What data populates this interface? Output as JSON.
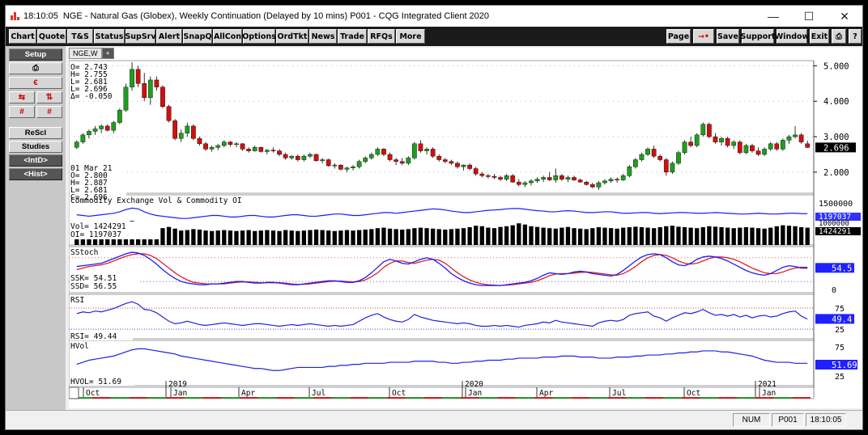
{
  "window": {
    "time": "18:10:05",
    "title": "NGE - Natural Gas (Globex), Weekly Continuation (Delayed by 10 mins)  P001 - CQG Integrated Client 2020",
    "minimize": "—",
    "maximize": "☐",
    "close": "✕"
  },
  "menubar": {
    "left": [
      "Chart",
      "Quote",
      "T&S",
      "Status",
      "SupSrv",
      "Alert",
      "SnapQ",
      "AllCon",
      "Options",
      "OrdTkt",
      "News",
      "Trade",
      "RFQs",
      "More"
    ],
    "right": [
      "Page",
      "→•",
      "Save",
      "Support",
      "Window",
      "Exit",
      "⎙",
      "?"
    ]
  },
  "leftpanel": {
    "setup": "Setup",
    "print_icon": "⎙",
    "cur_icon": "€",
    "arrows1": [
      "⇆",
      "⇅"
    ],
    "arrows2": [
      "#",
      "#"
    ],
    "rescl": "ReScl",
    "studies": "Studies",
    "intd": "<IntD>",
    "hist": "<Hist>"
  },
  "tabs": [
    "NGE,W",
    "+"
  ],
  "ohlc_top": {
    "O": "2.743",
    "H": "2.755",
    "L": "2.681",
    "L2": "2.696",
    "D": "-0.050"
  },
  "ohlc_bottom": {
    "date": "01 Mar 21",
    "O": "2.800",
    "H": "2.887",
    "L": "2.681",
    "C": "2.696"
  },
  "price_axis": [
    "5.000",
    "4.000",
    "3.000",
    "2.000"
  ],
  "last_price": "2.696",
  "volume_panel": {
    "title": "Commodity Exchange Vol & Commodity OI",
    "vol_label": "Vol=",
    "vol": "1424291",
    "oi_label": "OI=",
    "oi": "1197037",
    "axis_top": "1500000",
    "axis_mid": "1000000",
    "tag_oi": "1197037",
    "tag_vol": "1424291"
  },
  "stoch_panel": {
    "title": "SStoch",
    "ssk_label": "SSK=",
    "ssk": "54.51",
    "ssd_label": "SSD=",
    "ssd": "56.55",
    "axis_zero": "0",
    "tag": "54.5"
  },
  "rsi_panel": {
    "title": "RSI",
    "rsi_label": "RSI=",
    "rsi": "49.44",
    "axis": [
      "75",
      "25"
    ],
    "tag": "49.4"
  },
  "hvol_panel": {
    "title": "HVol",
    "label": "HVOL=",
    "value": "51.69",
    "axis": [
      "75",
      "25"
    ],
    "tag": "51.69"
  },
  "time_axis": [
    "Oct",
    "2019",
    "Jan",
    "Apr",
    "Jul",
    "Oct",
    "2020",
    "Jan",
    "Apr",
    "Jul",
    "Oct",
    "2021",
    "Jan"
  ],
  "statusbar": {
    "num": "NUM",
    "page": "P001",
    "time": "18:10:05"
  },
  "colors": {
    "up": "#1f9e1f",
    "down": "#d01010",
    "stoch_k": "#1a1aff",
    "stoch_d": "#e02020",
    "rsi": "#2020e0",
    "volume": "#000000"
  },
  "chart_data": {
    "type": "candlestick",
    "interval": "weekly",
    "price_range": [
      1.45,
      5.1
    ],
    "candles": [
      [
        2.7,
        2.9,
        2.65,
        2.85
      ],
      [
        2.85,
        3.1,
        2.8,
        3.05
      ],
      [
        3.05,
        3.2,
        2.95,
        3.15
      ],
      [
        3.15,
        3.3,
        3.05,
        3.22
      ],
      [
        3.22,
        3.35,
        3.1,
        3.3
      ],
      [
        3.3,
        3.35,
        3.15,
        3.18
      ],
      [
        3.18,
        3.45,
        3.1,
        3.4
      ],
      [
        3.4,
        3.8,
        3.35,
        3.75
      ],
      [
        3.75,
        4.5,
        3.7,
        4.4
      ],
      [
        4.4,
        5.1,
        4.3,
        4.9
      ],
      [
        4.9,
        5.0,
        4.4,
        4.5
      ],
      [
        4.5,
        4.8,
        4.0,
        4.1
      ],
      [
        4.1,
        4.7,
        3.9,
        4.6
      ],
      [
        4.6,
        4.7,
        4.3,
        4.4
      ],
      [
        4.4,
        4.45,
        3.8,
        3.85
      ],
      [
        3.85,
        3.9,
        3.4,
        3.45
      ],
      [
        3.45,
        3.5,
        2.9,
        2.95
      ],
      [
        2.95,
        3.2,
        2.85,
        3.1
      ],
      [
        3.1,
        3.4,
        3.0,
        3.3
      ],
      [
        3.3,
        3.35,
        2.9,
        2.95
      ],
      [
        2.95,
        3.0,
        2.75,
        2.8
      ],
      [
        2.8,
        2.85,
        2.6,
        2.65
      ],
      [
        2.65,
        2.75,
        2.58,
        2.7
      ],
      [
        2.7,
        2.8,
        2.62,
        2.75
      ],
      [
        2.75,
        2.9,
        2.7,
        2.85
      ],
      [
        2.85,
        2.88,
        2.72,
        2.78
      ],
      [
        2.78,
        2.85,
        2.7,
        2.8
      ],
      [
        2.8,
        2.82,
        2.6,
        2.65
      ],
      [
        2.65,
        2.7,
        2.55,
        2.6
      ],
      [
        2.6,
        2.75,
        2.58,
        2.7
      ],
      [
        2.7,
        2.72,
        2.55,
        2.58
      ],
      [
        2.58,
        2.65,
        2.5,
        2.62
      ],
      [
        2.62,
        2.7,
        2.55,
        2.6
      ],
      [
        2.6,
        2.65,
        2.45,
        2.5
      ],
      [
        2.5,
        2.55,
        2.35,
        2.4
      ],
      [
        2.4,
        2.48,
        2.35,
        2.45
      ],
      [
        2.45,
        2.5,
        2.3,
        2.35
      ],
      [
        2.35,
        2.5,
        2.3,
        2.45
      ],
      [
        2.45,
        2.55,
        2.4,
        2.5
      ],
      [
        2.5,
        2.52,
        2.3,
        2.32
      ],
      [
        2.32,
        2.4,
        2.25,
        2.35
      ],
      [
        2.35,
        2.38,
        2.15,
        2.18
      ],
      [
        2.18,
        2.25,
        2.1,
        2.2
      ],
      [
        2.2,
        2.22,
        2.05,
        2.08
      ],
      [
        2.08,
        2.15,
        2.0,
        2.12
      ],
      [
        2.12,
        2.2,
        2.05,
        2.15
      ],
      [
        2.15,
        2.35,
        2.1,
        2.3
      ],
      [
        2.3,
        2.45,
        2.25,
        2.4
      ],
      [
        2.4,
        2.55,
        2.35,
        2.5
      ],
      [
        2.5,
        2.7,
        2.45,
        2.65
      ],
      [
        2.65,
        2.68,
        2.45,
        2.5
      ],
      [
        2.5,
        2.55,
        2.3,
        2.35
      ],
      [
        2.35,
        2.4,
        2.2,
        2.3
      ],
      [
        2.3,
        2.4,
        2.2,
        2.25
      ],
      [
        2.25,
        2.45,
        2.2,
        2.4
      ],
      [
        2.4,
        2.85,
        2.35,
        2.8
      ],
      [
        2.8,
        2.9,
        2.55,
        2.6
      ],
      [
        2.6,
        2.7,
        2.5,
        2.65
      ],
      [
        2.65,
        2.7,
        2.4,
        2.45
      ],
      [
        2.45,
        2.5,
        2.3,
        2.35
      ],
      [
        2.35,
        2.4,
        2.25,
        2.3
      ],
      [
        2.3,
        2.35,
        2.2,
        2.25
      ],
      [
        2.25,
        2.3,
        2.1,
        2.15
      ],
      [
        2.15,
        2.22,
        2.05,
        2.2
      ],
      [
        2.2,
        2.25,
        2.05,
        2.1
      ],
      [
        2.1,
        2.15,
        1.9,
        1.95
      ],
      [
        1.95,
        2.0,
        1.85,
        1.9
      ],
      [
        1.9,
        1.95,
        1.82,
        1.88
      ],
      [
        1.88,
        1.95,
        1.8,
        1.85
      ],
      [
        1.85,
        1.9,
        1.75,
        1.8
      ],
      [
        1.8,
        1.95,
        1.75,
        1.9
      ],
      [
        1.9,
        1.95,
        1.7,
        1.72
      ],
      [
        1.72,
        1.8,
        1.6,
        1.65
      ],
      [
        1.65,
        1.75,
        1.58,
        1.7
      ],
      [
        1.7,
        1.8,
        1.62,
        1.75
      ],
      [
        1.75,
        1.85,
        1.7,
        1.8
      ],
      [
        1.8,
        1.9,
        1.72,
        1.85
      ],
      [
        1.85,
        2.0,
        1.75,
        1.78
      ],
      [
        1.78,
        2.1,
        1.7,
        1.9
      ],
      [
        1.9,
        1.95,
        1.75,
        1.8
      ],
      [
        1.8,
        1.9,
        1.72,
        1.85
      ],
      [
        1.85,
        1.9,
        1.75,
        1.78
      ],
      [
        1.78,
        1.82,
        1.7,
        1.72
      ],
      [
        1.72,
        1.75,
        1.62,
        1.65
      ],
      [
        1.65,
        1.7,
        1.55,
        1.58
      ],
      [
        1.58,
        1.75,
        1.5,
        1.7
      ],
      [
        1.7,
        1.8,
        1.65,
        1.75
      ],
      [
        1.75,
        1.85,
        1.7,
        1.8
      ],
      [
        1.8,
        1.85,
        1.7,
        1.78
      ],
      [
        1.78,
        1.95,
        1.75,
        1.9
      ],
      [
        1.9,
        2.2,
        1.85,
        2.15
      ],
      [
        2.15,
        2.4,
        2.1,
        2.35
      ],
      [
        2.35,
        2.55,
        2.3,
        2.5
      ],
      [
        2.5,
        2.7,
        2.45,
        2.65
      ],
      [
        2.65,
        2.75,
        2.4,
        2.45
      ],
      [
        2.45,
        2.5,
        2.3,
        2.35
      ],
      [
        2.35,
        2.4,
        1.9,
        2.0
      ],
      [
        2.0,
        2.3,
        1.95,
        2.25
      ],
      [
        2.25,
        2.6,
        2.2,
        2.55
      ],
      [
        2.55,
        2.9,
        2.5,
        2.85
      ],
      [
        2.85,
        3.0,
        2.7,
        2.75
      ],
      [
        2.75,
        3.1,
        2.7,
        3.05
      ],
      [
        3.05,
        3.4,
        3.0,
        3.35
      ],
      [
        3.35,
        3.4,
        2.95,
        3.0
      ],
      [
        3.0,
        3.1,
        2.8,
        2.85
      ],
      [
        2.85,
        3.0,
        2.75,
        2.95
      ],
      [
        2.95,
        3.0,
        2.7,
        2.75
      ],
      [
        2.75,
        2.9,
        2.65,
        2.85
      ],
      [
        2.85,
        2.9,
        2.5,
        2.55
      ],
      [
        2.55,
        2.8,
        2.5,
        2.75
      ],
      [
        2.75,
        2.8,
        2.55,
        2.6
      ],
      [
        2.6,
        2.7,
        2.45,
        2.5
      ],
      [
        2.5,
        2.7,
        2.45,
        2.65
      ],
      [
        2.65,
        2.85,
        2.6,
        2.8
      ],
      [
        2.8,
        2.85,
        2.6,
        2.65
      ],
      [
        2.65,
        2.95,
        2.6,
        2.9
      ],
      [
        2.9,
        3.05,
        2.8,
        3.0
      ],
      [
        3.0,
        3.3,
        2.95,
        3.05
      ],
      [
        3.05,
        3.1,
        2.8,
        2.85
      ],
      [
        2.8,
        2.887,
        2.681,
        2.696
      ]
    ],
    "volume": [
      0.45,
      0.5,
      0.55,
      0.5,
      0.6,
      0.55,
      0.62,
      0.7,
      0.95,
      1.0,
      0.85,
      0.72,
      0.65,
      0.6,
      0.7,
      0.75,
      0.68,
      0.6,
      0.62,
      0.66,
      0.64,
      0.6,
      0.58,
      0.6,
      0.62,
      0.6,
      0.58,
      0.6,
      0.62,
      0.58,
      0.6,
      0.62,
      0.6,
      0.58,
      0.62,
      0.6,
      0.58,
      0.6,
      0.62,
      0.64,
      0.62,
      0.6,
      0.58,
      0.6,
      0.62,
      0.6,
      0.62,
      0.64,
      0.66,
      0.7,
      0.72,
      0.68,
      0.66,
      0.64,
      0.66,
      0.7,
      0.72,
      0.7,
      0.68,
      0.66,
      0.64,
      0.66,
      0.68,
      0.7,
      0.74,
      0.8,
      0.78,
      0.72,
      0.7,
      0.75,
      0.78,
      0.82,
      0.9,
      0.85,
      0.78,
      0.75,
      0.72,
      0.7,
      0.68,
      0.72,
      0.75,
      0.7,
      0.68,
      0.66,
      0.7,
      0.74,
      0.72,
      0.7,
      0.68,
      0.72,
      0.74,
      0.76,
      0.74,
      0.72,
      0.7,
      0.74,
      0.78,
      0.8,
      0.76,
      0.74,
      0.72,
      0.7,
      0.74,
      0.78,
      0.76,
      0.74,
      0.72,
      0.7,
      0.72,
      0.74,
      0.72,
      0.7,
      0.68,
      0.72,
      0.78,
      0.82,
      0.8,
      0.78,
      0.74,
      0.72
    ],
    "open_interest": [
      0.82,
      0.8,
      0.78,
      0.8,
      0.82,
      0.84,
      0.86,
      0.9,
      0.96,
      1.0,
      0.98,
      0.9,
      0.84,
      0.8,
      0.78,
      0.76,
      0.74,
      0.72,
      0.72,
      0.74,
      0.76,
      0.78,
      0.8,
      0.8,
      0.78,
      0.76,
      0.76,
      0.78,
      0.8,
      0.8,
      0.78,
      0.76,
      0.76,
      0.78,
      0.8,
      0.82,
      0.82,
      0.8,
      0.78,
      0.78,
      0.8,
      0.82,
      0.84,
      0.84,
      0.82,
      0.8,
      0.8,
      0.82,
      0.84,
      0.86,
      0.88,
      0.88,
      0.86,
      0.88,
      0.9,
      0.92,
      0.94,
      0.96,
      0.98,
      0.97,
      0.95,
      0.92,
      0.9,
      0.88,
      0.88,
      0.9,
      0.92,
      0.94,
      0.95,
      0.96,
      0.98,
      0.99,
      0.99,
      0.97,
      0.95,
      0.93,
      0.92,
      0.9,
      0.9,
      0.92,
      0.93,
      0.92,
      0.9,
      0.88,
      0.88,
      0.89,
      0.9,
      0.9,
      0.88,
      0.86,
      0.86,
      0.87,
      0.88,
      0.88,
      0.86,
      0.85,
      0.86,
      0.87,
      0.88,
      0.88,
      0.87,
      0.86,
      0.86,
      0.87,
      0.88,
      0.87,
      0.86,
      0.85,
      0.84,
      0.84,
      0.85,
      0.86,
      0.85,
      0.84,
      0.84,
      0.85,
      0.86,
      0.86,
      0.85,
      0.85
    ],
    "stoch_k": [
      58,
      60,
      62,
      64,
      66,
      72,
      78,
      84,
      90,
      94,
      92,
      86,
      76,
      64,
      50,
      38,
      28,
      20,
      16,
      14,
      12,
      12,
      14,
      14,
      16,
      18,
      20,
      20,
      18,
      16,
      16,
      18,
      18,
      16,
      14,
      12,
      12,
      14,
      16,
      18,
      20,
      22,
      22,
      20,
      18,
      18,
      22,
      30,
      42,
      56,
      70,
      76,
      72,
      66,
      64,
      70,
      76,
      80,
      76,
      66,
      54,
      40,
      30,
      22,
      16,
      12,
      10,
      10,
      10,
      10,
      12,
      14,
      16,
      18,
      22,
      28,
      36,
      42,
      40,
      38,
      40,
      44,
      46,
      44,
      40,
      38,
      36,
      34,
      38,
      48,
      60,
      72,
      82,
      88,
      90,
      88,
      80,
      70,
      62,
      60,
      66,
      76,
      82,
      84,
      82,
      78,
      72,
      64,
      56,
      48,
      42,
      38,
      36,
      40,
      48,
      56,
      60,
      58,
      54,
      54
    ],
    "stoch_d": [
      50,
      54,
      58,
      60,
      62,
      66,
      72,
      78,
      84,
      88,
      90,
      90,
      86,
      78,
      66,
      54,
      42,
      32,
      24,
      18,
      16,
      14,
      14,
      14,
      14,
      16,
      18,
      19,
      19,
      18,
      17,
      17,
      17,
      17,
      16,
      14,
      13,
      13,
      14,
      16,
      18,
      20,
      21,
      21,
      20,
      19,
      20,
      24,
      32,
      42,
      56,
      66,
      72,
      72,
      68,
      66,
      70,
      74,
      76,
      74,
      66,
      54,
      42,
      32,
      24,
      18,
      14,
      12,
      11,
      10,
      11,
      12,
      14,
      16,
      18,
      22,
      28,
      35,
      39,
      40,
      40,
      41,
      43,
      44,
      43,
      41,
      39,
      37,
      36,
      40,
      48,
      58,
      70,
      80,
      86,
      88,
      86,
      80,
      72,
      66,
      64,
      66,
      72,
      78,
      82,
      82,
      80,
      76,
      70,
      62,
      54,
      48,
      42,
      40,
      40,
      44,
      50,
      54,
      56,
      56
    ],
    "rsi": [
      62,
      66,
      64,
      68,
      66,
      70,
      74,
      80,
      86,
      90,
      84,
      72,
      70,
      64,
      54,
      44,
      38,
      40,
      44,
      40,
      36,
      34,
      36,
      38,
      40,
      38,
      36,
      34,
      36,
      38,
      38,
      36,
      34,
      32,
      34,
      36,
      34,
      36,
      38,
      36,
      34,
      32,
      34,
      32,
      34,
      36,
      44,
      52,
      58,
      62,
      54,
      48,
      44,
      42,
      48,
      60,
      54,
      50,
      46,
      44,
      42,
      40,
      38,
      40,
      38,
      34,
      32,
      32,
      34,
      32,
      34,
      32,
      30,
      34,
      36,
      38,
      42,
      40,
      46,
      42,
      40,
      38,
      36,
      34,
      32,
      40,
      44,
      46,
      44,
      48,
      58,
      62,
      64,
      66,
      56,
      52,
      44,
      52,
      58,
      64,
      62,
      66,
      72,
      64,
      58,
      60,
      56,
      60,
      54,
      58,
      52,
      56,
      58,
      54,
      56,
      62,
      66,
      68,
      56,
      49
    ],
    "hvol": [
      50,
      54,
      58,
      60,
      62,
      64,
      66,
      70,
      74,
      78,
      80,
      80,
      78,
      76,
      74,
      72,
      70,
      66,
      64,
      62,
      60,
      58,
      56,
      54,
      52,
      50,
      48,
      46,
      44,
      42,
      42,
      40,
      38,
      38,
      40,
      42,
      44,
      44,
      44,
      44,
      44,
      46,
      46,
      48,
      48,
      50,
      50,
      52,
      52,
      52,
      52,
      54,
      54,
      54,
      54,
      56,
      56,
      56,
      56,
      54,
      54,
      52,
      52,
      54,
      54,
      56,
      56,
      58,
      58,
      58,
      60,
      60,
      62,
      62,
      62,
      62,
      64,
      64,
      64,
      66,
      66,
      66,
      64,
      64,
      64,
      62,
      62,
      62,
      64,
      64,
      64,
      66,
      66,
      68,
      68,
      68,
      70,
      70,
      72,
      72,
      74,
      74,
      76,
      76,
      76,
      74,
      74,
      72,
      70,
      68,
      66,
      62,
      58,
      56,
      54,
      54,
      54,
      52,
      52,
      52
    ]
  }
}
